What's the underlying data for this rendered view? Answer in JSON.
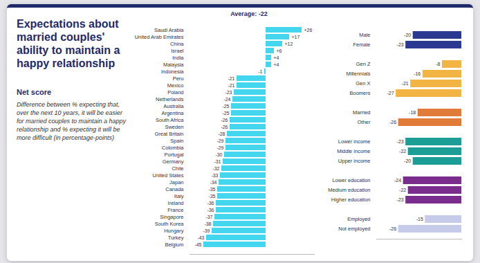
{
  "title": "Expectations about married couples' ability to maintain a happy relationship",
  "heading": "Net score",
  "description": "Difference between % expecting that, over the next 10 years, it will be easier for married couples to maintain a happy relationship and % expecting it will be more difficult (in percentage-points)",
  "chart_data": [
    {
      "type": "bar",
      "orientation": "horizontal",
      "subtitle": "Average: -22",
      "categories": [
        "Saudi Arabia",
        "United Arab Emirates",
        "China",
        "Israel",
        "India",
        "Malaysia",
        "Indonesia",
        "Peru",
        "Mexico",
        "Poland",
        "Netherlands",
        "Australia",
        "Argentina",
        "South Africa",
        "Sweden",
        "Great Britain",
        "Spain",
        "Colombia",
        "Portugal",
        "Germany",
        "Chile",
        "United States",
        "Japan",
        "Canada",
        "Italy",
        "Ireland",
        "France",
        "Singapore",
        "South Korea",
        "Hungary",
        "Turkey",
        "Belgium"
      ],
      "values": [
        26,
        17,
        12,
        6,
        4,
        4,
        -1,
        -21,
        -21,
        -23,
        -24,
        -25,
        -25,
        -26,
        -26,
        -28,
        -29,
        -29,
        -30,
        -31,
        -32,
        -33,
        -34,
        -35,
        -35,
        -36,
        -36,
        -37,
        -38,
        -39,
        -43,
        -45
      ],
      "value_labels": [
        "+26",
        "+17",
        "+12",
        "+6",
        "+4",
        "+4",
        "-1",
        "-21",
        "-21",
        "-23",
        "-24",
        "-25",
        "-25",
        "-26",
        "-26",
        "-28",
        "-29",
        "-29",
        "-30",
        "-31",
        "-32",
        "-33",
        "-34",
        "-35",
        "-35",
        "-36",
        "-36",
        "-37",
        "-38",
        "-39",
        "-43",
        "-45"
      ],
      "color": "#45d6ef",
      "xlim": [
        -55,
        35
      ],
      "tick_labels": "y",
      "data_labels": true,
      "grid": false
    },
    {
      "type": "bar",
      "orientation": "horizontal",
      "categories": [
        "Male",
        "Female",
        "Gen Z",
        "Millennials",
        "Gen X",
        "Boomers",
        "Married",
        "Other",
        "Lower income",
        "Middle income",
        "Upper income",
        "Lower education",
        "Medium education",
        "Higher education",
        "Employed",
        "Not employed"
      ],
      "values": [
        -20,
        -23,
        -8,
        -16,
        -21,
        -27,
        -18,
        -26,
        -23,
        -22,
        -20,
        -24,
        -22,
        -23,
        -15,
        -26
      ],
      "colors": [
        "#2b3990",
        "#2b3990",
        "#f2b544",
        "#f2b544",
        "#f2b544",
        "#f2b544",
        "#e07b39",
        "#e07b39",
        "#1a9e96",
        "#1a9e96",
        "#1a9e96",
        "#7b2d8e",
        "#7b2d8e",
        "#7b2d8e",
        "#c5cbe8",
        "#c5cbe8"
      ],
      "xlim": [
        -35,
        0
      ],
      "tick_labels": "y",
      "data_labels": true,
      "grid": false
    }
  ]
}
